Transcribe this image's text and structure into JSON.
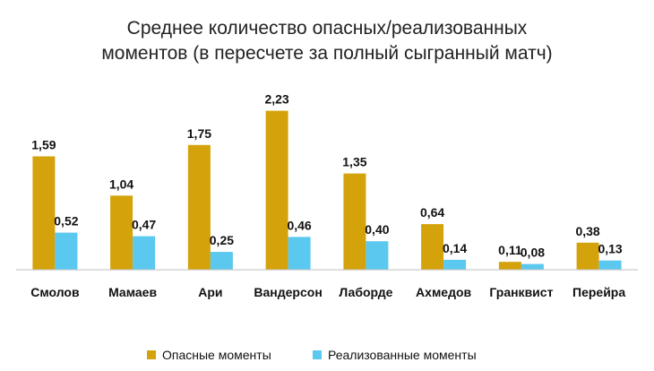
{
  "chart_data": {
    "type": "bar",
    "title_lines": [
      "Среднее количество опасных/реализованных",
      "моментов (в пересчете за полный сыгранный матч)"
    ],
    "categories": [
      "Смолов",
      "Мамаев",
      "Ари",
      "Вандерсон",
      "Лаборде",
      "Ахмедов",
      "Гранквист",
      "Перейра"
    ],
    "series": [
      {
        "name": "Опасные моменты",
        "color": "#D4A20A",
        "values": [
          1.59,
          1.04,
          1.75,
          2.23,
          1.35,
          0.64,
          0.11,
          0.38
        ],
        "labels": [
          "1,59",
          "1,04",
          "1,75",
          "2,23",
          "1,35",
          "0,64",
          "0,11",
          "0,38"
        ]
      },
      {
        "name": "Реализованные моменты",
        "color": "#5BC8F0",
        "values": [
          0.52,
          0.47,
          0.25,
          0.46,
          0.4,
          0.14,
          0.08,
          0.13
        ],
        "labels": [
          "0,52",
          "0,47",
          "0,25",
          "0,46",
          "0,40",
          "0,14",
          "0,08",
          "0,13"
        ]
      }
    ],
    "ylim": [
      0,
      2.3
    ],
    "xlabel": "",
    "ylabel": "",
    "grid": false,
    "legend_position": "bottom"
  }
}
